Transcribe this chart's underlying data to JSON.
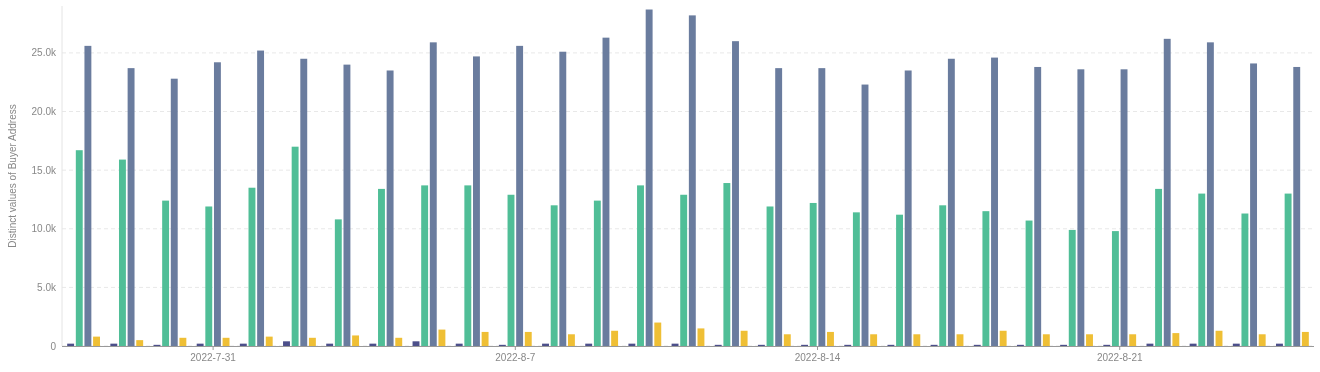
{
  "chart_data": {
    "type": "bar",
    "ylabel": "Distinct values of Buyer Address",
    "x": [
      "2022-07-28",
      "2022-07-29",
      "2022-07-30",
      "2022-07-31",
      "2022-08-01",
      "2022-08-02",
      "2022-08-03",
      "2022-08-04",
      "2022-08-05",
      "2022-08-06",
      "2022-08-07",
      "2022-08-08",
      "2022-08-09",
      "2022-08-10",
      "2022-08-11",
      "2022-08-12",
      "2022-08-13",
      "2022-08-14",
      "2022-08-15",
      "2022-08-16",
      "2022-08-17",
      "2022-08-18",
      "2022-08-19",
      "2022-08-20",
      "2022-08-21",
      "2022-08-22",
      "2022-08-23",
      "2022-08-24",
      "2022-08-25"
    ],
    "xlim": [
      "2022-07-27T12:00",
      "2022-08-25T12:00"
    ],
    "xticks": [
      {
        "value": "2022-07-31",
        "label": "2022-7-31"
      },
      {
        "value": "2022-08-07",
        "label": "2022-8-7"
      },
      {
        "value": "2022-08-14",
        "label": "2022-8-14"
      },
      {
        "value": "2022-08-21",
        "label": "2022-8-21"
      }
    ],
    "ylim": [
      0,
      29000
    ],
    "yticks": [
      0,
      {
        "value": 5000,
        "label": "5.0k"
      },
      {
        "value": 10000,
        "label": "10.0k"
      },
      {
        "value": 15000,
        "label": "15.0k"
      },
      {
        "value": 20000,
        "label": "20.0k"
      },
      {
        "value": 25000,
        "label": "25.0k"
      }
    ],
    "grid": "y",
    "series": [
      {
        "color": "#4c4f8a",
        "values": [
          200,
          200,
          100,
          200,
          200,
          400,
          200,
          200,
          400,
          200,
          100,
          200,
          200,
          200,
          200,
          100,
          100,
          100,
          100,
          100,
          100,
          100,
          100,
          100,
          100,
          200,
          200,
          200,
          200
        ]
      },
      {
        "color": "#50be97",
        "values": [
          16700,
          15900,
          12400,
          11900,
          13500,
          17000,
          10800,
          13400,
          13700,
          13700,
          12900,
          12000,
          12400,
          13700,
          12900,
          13900,
          11900,
          12200,
          11400,
          11200,
          12000,
          11500,
          10700,
          9900,
          9800,
          13400,
          13000,
          11300,
          13000
        ]
      },
      {
        "color": "#6a7c9e",
        "values": [
          25600,
          23700,
          22800,
          24200,
          25200,
          24500,
          24000,
          23500,
          25900,
          24700,
          25600,
          25100,
          26300,
          28700,
          28200,
          26000,
          23700,
          23700,
          22300,
          23500,
          24500,
          24600,
          23800,
          23600,
          23600,
          26200,
          25900,
          24100,
          23800
        ]
      },
      {
        "color": "#efbf35",
        "values": [
          800,
          500,
          700,
          700,
          800,
          700,
          900,
          700,
          1400,
          1200,
          1200,
          1000,
          1300,
          2000,
          1500,
          1300,
          1000,
          1200,
          1000,
          1000,
          1000,
          1300,
          1000,
          1000,
          1000,
          1100,
          1300,
          1000,
          1200
        ]
      }
    ]
  }
}
